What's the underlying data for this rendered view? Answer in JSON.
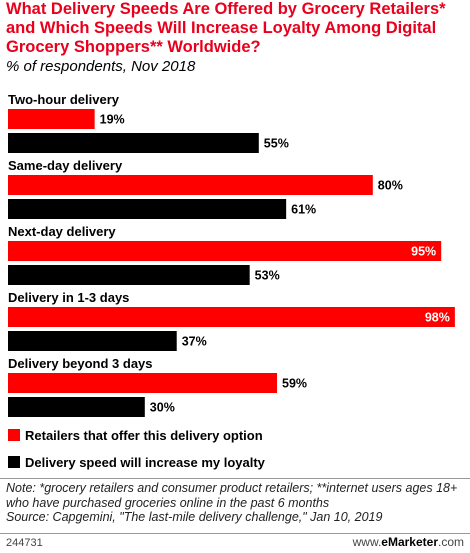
{
  "title": "What Delivery Speeds Are Offered by Grocery Retailers* and Which Speeds Will Increase Loyalty Among Digital Grocery Shoppers** Worldwide?",
  "subtitle": "% of respondents, Nov 2018",
  "colors": {
    "retailers": "#ff0000",
    "loyalty": "#000000",
    "title": "#e8001c"
  },
  "chart_data": {
    "type": "bar",
    "orientation": "horizontal",
    "categories": [
      "Two-hour delivery",
      "Same-day delivery",
      "Next-day delivery",
      "Delivery in 1-3 days",
      "Delivery beyond 3 days"
    ],
    "series": [
      {
        "name": "Retailers that offer this delivery option",
        "values": [
          19,
          80,
          95,
          98,
          59
        ]
      },
      {
        "name": "Delivery speed will increase my loyalty",
        "values": [
          55,
          61,
          53,
          37,
          30
        ]
      }
    ],
    "value_suffix": "%",
    "xlim": [
      0,
      100
    ],
    "grid": false,
    "legend_position": "bottom-left"
  },
  "legend": [
    {
      "label": "Retailers that offer this delivery option"
    },
    {
      "label": "Delivery speed will increase my loyalty"
    }
  ],
  "note": "Note: *grocery retailers and consumer product retailers; **internet users ages 18+ who have purchased groceries online in the past 6 months",
  "source": "Source: Capgemini, \"The last-mile delivery challenge,\" Jan 10, 2019",
  "footer": {
    "id": "244731",
    "site_prefix": "www.",
    "brand": "eMarketer",
    "site_suffix": ".com"
  }
}
